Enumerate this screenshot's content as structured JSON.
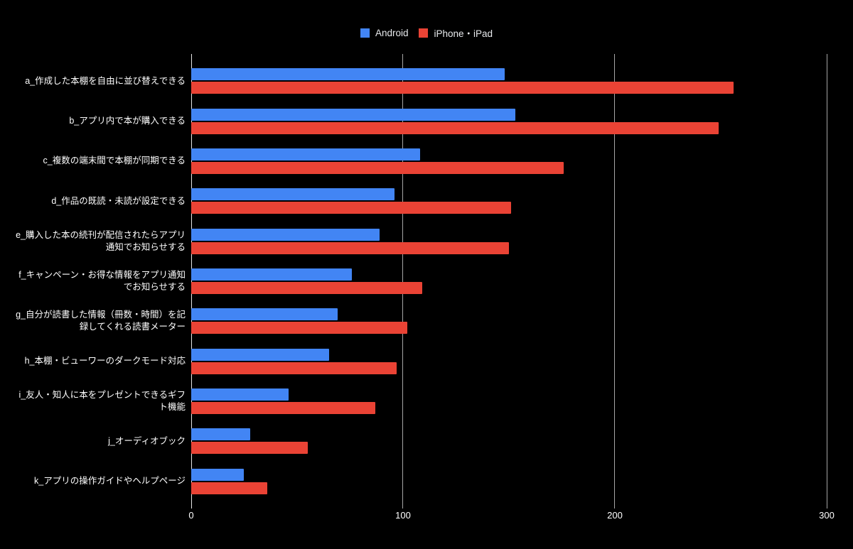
{
  "colors": {
    "background": "#000000",
    "android_bar": "#4285F4",
    "iphone_ipad_bar": "#EA4335",
    "gridline": "#a6a6a6",
    "axis_line": "#e6e6e6",
    "label_text": "#ffffff",
    "legend_text": "#e8eaed"
  },
  "chart_data": {
    "type": "bar",
    "orientation": "horizontal",
    "title": "",
    "xlabel": "",
    "ylabel": "",
    "legend_position": "top",
    "grid": "vertical gridlines on black background",
    "xlim": [
      0,
      300
    ],
    "x_ticks": [
      0,
      100,
      200,
      300
    ],
    "categories": [
      "a_作成した本棚を自由に並び替えできる",
      "b_アプリ内で本が購入できる",
      "c_複数の端末間で本棚が同期できる",
      "d_作品の既読・未読が設定できる",
      "e_購入した本の続刊が配信されたらアプリ通知でお知らせする",
      "f_キャンペーン・お得な情報をアプリ通知でお知らせする",
      "g_自分が読書した情報（冊数・時間）を記録してくれる読書メーター",
      "h_本棚・ビューワーのダークモード対応",
      "i_友人・知人に本をプレゼントできるギフト機能",
      "j_オーディオブック",
      "k_アプリの操作ガイドやヘルプページ"
    ],
    "series": [
      {
        "name": "Android",
        "color": "#4285F4",
        "values": [
          148,
          153,
          108,
          96,
          89,
          76,
          69,
          65,
          46,
          28,
          25
        ]
      },
      {
        "name": "iPhone・iPad",
        "color": "#EA4335",
        "values": [
          256,
          249,
          176,
          151,
          150,
          109,
          102,
          97,
          87,
          55,
          36
        ]
      }
    ]
  }
}
